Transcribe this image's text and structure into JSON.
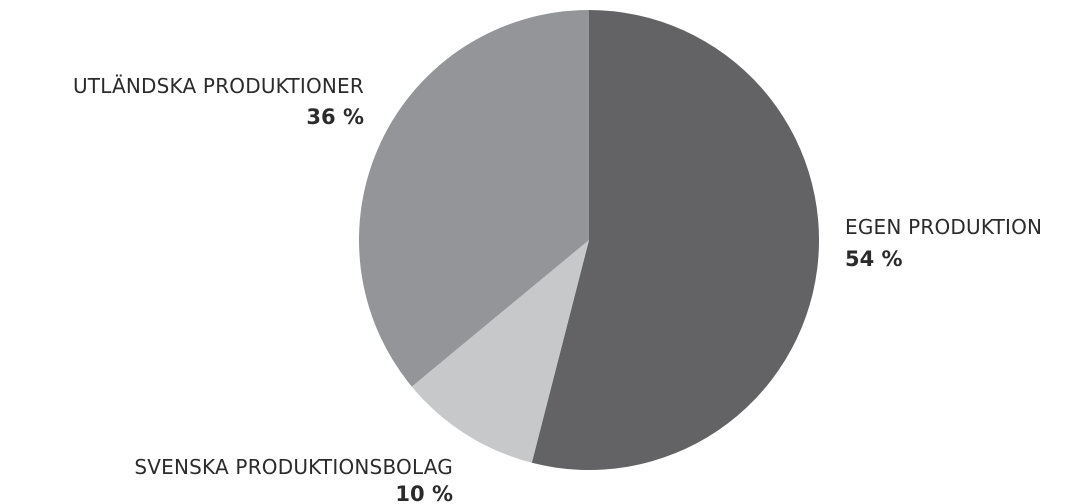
{
  "chart_data": {
    "type": "pie",
    "title": "",
    "slices": [
      {
        "label": "EGEN PRODUKTION",
        "value": 54,
        "value_label": "54 %",
        "color": "#636365"
      },
      {
        "label": "SVENSKA PRODUKTIONSBOLAG",
        "value": 10,
        "value_label": "10 %",
        "color": "#c7c8ca"
      },
      {
        "label": "UTLÄNDSKA PRODUKTIONER",
        "value": 36,
        "value_label": "36 %",
        "color": "#939598"
      }
    ],
    "start_angle": "12 o'clock",
    "direction": "clockwise",
    "legend": "none"
  }
}
